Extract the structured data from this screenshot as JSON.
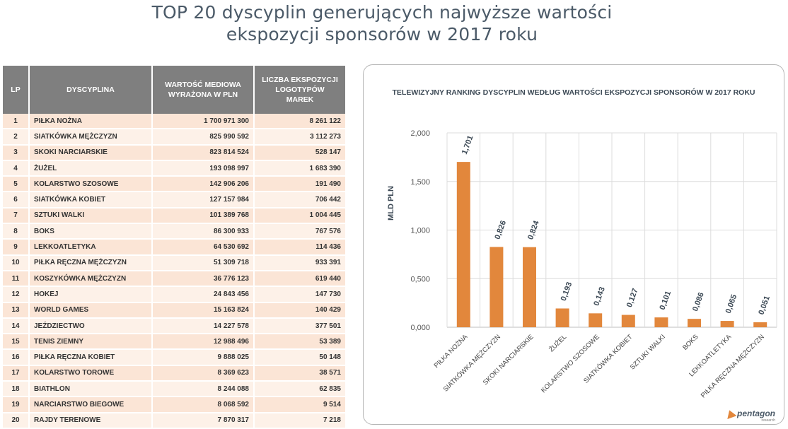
{
  "page": {
    "title_line1": "TOP 20 dyscyplin generujących najwyższe wartości",
    "title_line2": "ekspozycji sponsorów w 2017 roku"
  },
  "table": {
    "headers": {
      "lp": "LP",
      "name": "DYSCYPLINA",
      "value_line1": "WARTOŚĆ MEDIOWA",
      "value_line2": "WYRAŻONA W PLN",
      "count_line1": "LICZBA EKSPOZYCJI",
      "count_line2": "LOGOTYPÓW",
      "count_line3": "MAREK"
    },
    "rows": [
      {
        "lp": "1",
        "name": "PIŁKA NOŻNA",
        "value": "1 700 971 300",
        "count": "8 261 122"
      },
      {
        "lp": "2",
        "name": "SIATKÓWKA MĘŻCZYZN",
        "value": "825 990 592",
        "count": "3 112 273"
      },
      {
        "lp": "3",
        "name": "SKOKI NARCIARSKIE",
        "value": "823 814 524",
        "count": "528 147"
      },
      {
        "lp": "4",
        "name": "ŻUŻEL",
        "value": "193 098 997",
        "count": "1 683 390"
      },
      {
        "lp": "5",
        "name": "KOLARSTWO SZOSOWE",
        "value": "142 906 206",
        "count": "191 490"
      },
      {
        "lp": "6",
        "name": "SIATKÓWKA KOBIET",
        "value": "127 157 984",
        "count": "706 442"
      },
      {
        "lp": "7",
        "name": "SZTUKI WALKI",
        "value": "101 389 768",
        "count": "1 004 445"
      },
      {
        "lp": "8",
        "name": "BOKS",
        "value": "86 300 933",
        "count": "767 576"
      },
      {
        "lp": "9",
        "name": "LEKKOATLETYKA",
        "value": "64 530 692",
        "count": "114 436"
      },
      {
        "lp": "10",
        "name": "PIŁKA RĘCZNA MĘŻCZYZN",
        "value": "51 309 718",
        "count": "933 391"
      },
      {
        "lp": "11",
        "name": "KOSZYKÓWKA MĘŻCZYZN",
        "value": "36 776 123",
        "count": "619 440"
      },
      {
        "lp": "12",
        "name": "HOKEJ",
        "value": "24 843 456",
        "count": "147 730"
      },
      {
        "lp": "13",
        "name": "WORLD GAMES",
        "value": "15 163 824",
        "count": "140 429"
      },
      {
        "lp": "14",
        "name": "JEŹDZIECTWO",
        "value": "14 227 578",
        "count": "377 501"
      },
      {
        "lp": "15",
        "name": "TENIS ZIEMNY",
        "value": "12 988 496",
        "count": "53 389"
      },
      {
        "lp": "16",
        "name": "PIŁKA RĘCZNA KOBIET",
        "value": "9 888 025",
        "count": "50 148"
      },
      {
        "lp": "17",
        "name": "KOLARSTWO TOROWE",
        "value": "8 369 623",
        "count": "38 571"
      },
      {
        "lp": "18",
        "name": "BIATHLON",
        "value": "8 244 088",
        "count": "62 835"
      },
      {
        "lp": "19",
        "name": "NARCIARSTWO BIEGOWE",
        "value": "8 068 592",
        "count": "9 514"
      },
      {
        "lp": "20",
        "name": "RAJDY TERENOWE",
        "value": "7 870 317",
        "count": "7 218"
      }
    ]
  },
  "chart_data": {
    "type": "bar",
    "title": "TELEWIZYJNY RANKING DYSCYPLIN WEDŁUG WARTOŚCI EKSPOZYCJI SPONSORÓW W 2017 ROKU",
    "ylabel": "MLD PLN",
    "xlabel": "",
    "ylim": [
      0,
      2000
    ],
    "yticks": [
      {
        "value": 0,
        "label": "0,000"
      },
      {
        "value": 500,
        "label": "0,500"
      },
      {
        "value": 1000,
        "label": "1,000"
      },
      {
        "value": 1500,
        "label": "1,500"
      },
      {
        "value": 2000,
        "label": "2,000"
      }
    ],
    "categories": [
      "PIŁKA NOŻNA",
      "SIATKÓWKA MĘŻCZYZN",
      "SKOKI NARCIARSKIE",
      "ŻUŻEL",
      "KOLARSTWO SZOSOWE",
      "SIATKÓWKA KOBIET",
      "SZTUKI WALKI",
      "BOKS",
      "LEKKOATLETYKA",
      "PIŁKA RĘCZNA MĘŻCZYZN"
    ],
    "values": [
      1701,
      826,
      824,
      193,
      143,
      127,
      101,
      86,
      65,
      51
    ],
    "value_labels": [
      "1,701",
      "0,826",
      "0,824",
      "0,193",
      "0,143",
      "0,127",
      "0,101",
      "0,086",
      "0,065",
      "0,051"
    ],
    "bar_color": "#e2873c",
    "grid": true
  },
  "logo": {
    "name": "pentagon",
    "sub": "research"
  }
}
